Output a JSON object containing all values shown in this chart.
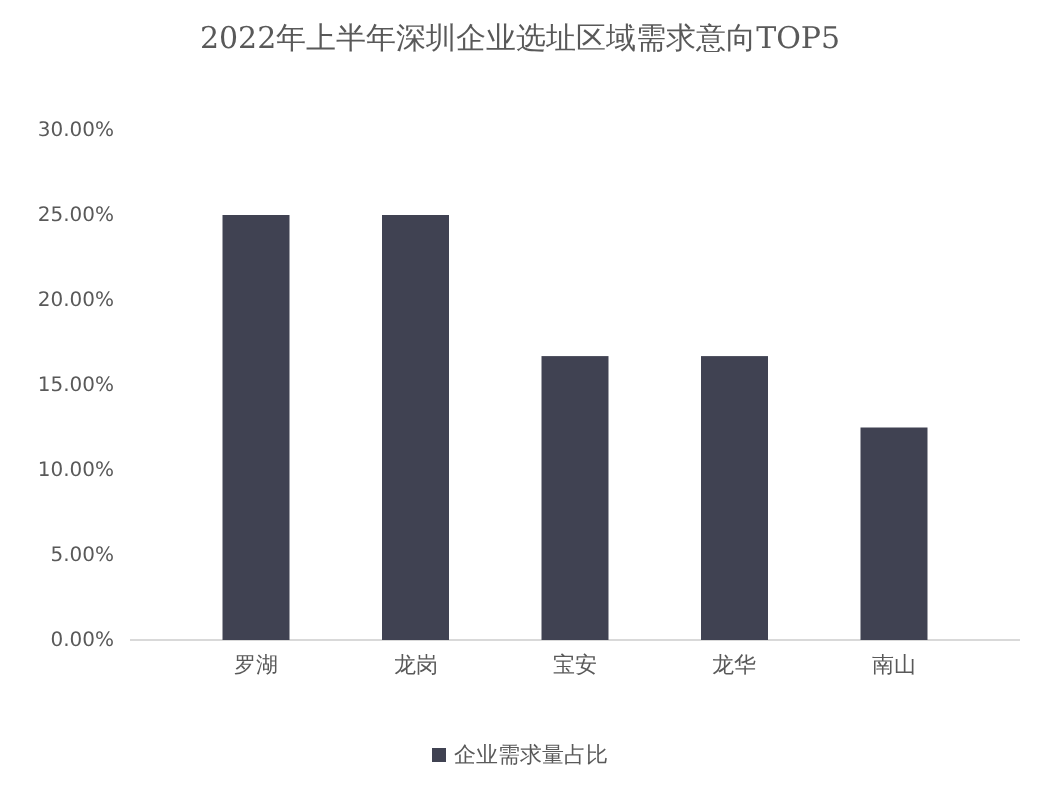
{
  "chart_data": {
    "type": "bar",
    "title": "2022年上半年深圳企业选址区域需求意向TOP5",
    "categories": [
      "罗湖",
      "龙岗",
      "宝安",
      "龙华",
      "南山"
    ],
    "series": [
      {
        "name": "企业需求量占比",
        "color": "#404252",
        "values": [
          25,
          25,
          16.7,
          16.7,
          12.5
        ]
      }
    ],
    "ylim": [
      0,
      30
    ],
    "yticks": [
      {
        "value": 0,
        "label": "0.00%"
      },
      {
        "value": 5,
        "label": "5.00%"
      },
      {
        "value": 10,
        "label": "10.00%"
      },
      {
        "value": 15,
        "label": "15.00%"
      },
      {
        "value": 20,
        "label": "20.00%"
      },
      {
        "value": 25,
        "label": "25.00%"
      },
      {
        "value": 30,
        "label": "30.00%"
      }
    ],
    "grid": false,
    "legend": "bottom"
  }
}
